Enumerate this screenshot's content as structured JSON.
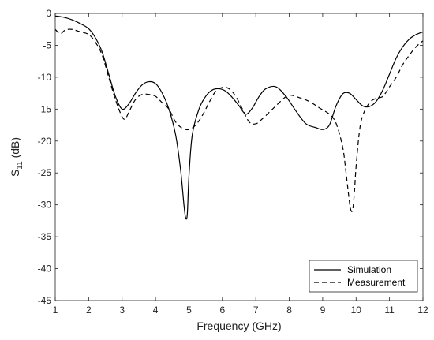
{
  "chart_data": {
    "type": "line",
    "title": "",
    "xlabel": "Frequency (GHz)",
    "ylabel": "S",
    "ylabel_sub": "11",
    "ylabel_suffix": " (dB)",
    "xlim": [
      1,
      12
    ],
    "ylim": [
      -45,
      0
    ],
    "xticks": [
      1,
      2,
      3,
      4,
      5,
      6,
      7,
      8,
      9,
      10,
      11,
      12
    ],
    "yticks": [
      0,
      -5,
      -10,
      -15,
      -20,
      -25,
      -30,
      -35,
      -40,
      -45
    ],
    "grid": false,
    "legend_position": "bottom-right",
    "series": [
      {
        "name": "Simulation",
        "style": "solid",
        "color": "#000000",
        "x": [
          1.0,
          1.25,
          1.5,
          1.75,
          2.0,
          2.2,
          2.4,
          2.6,
          2.8,
          3.0,
          3.2,
          3.4,
          3.6,
          3.8,
          4.0,
          4.2,
          4.4,
          4.6,
          4.75,
          4.85,
          4.9,
          4.95,
          5.0,
          5.1,
          5.3,
          5.5,
          5.7,
          5.9,
          6.1,
          6.3,
          6.5,
          6.7,
          6.9,
          7.1,
          7.3,
          7.6,
          7.9,
          8.2,
          8.5,
          8.8,
          9.0,
          9.2,
          9.4,
          9.6,
          9.8,
          10.0,
          10.2,
          10.4,
          10.6,
          10.8,
          11.0,
          11.2,
          11.4,
          11.6,
          11.8,
          12.0
        ],
        "y": [
          -0.4,
          -0.6,
          -1.0,
          -1.6,
          -2.4,
          -3.8,
          -6.0,
          -9.5,
          -13.0,
          -15.0,
          -14.2,
          -12.5,
          -11.2,
          -10.7,
          -11.0,
          -12.5,
          -15.0,
          -19.0,
          -24.5,
          -30.0,
          -32.0,
          -31.5,
          -25.5,
          -19.0,
          -15.0,
          -13.0,
          -12.0,
          -11.8,
          -12.2,
          -13.2,
          -14.5,
          -15.8,
          -14.8,
          -13.0,
          -11.8,
          -11.5,
          -13.0,
          -15.3,
          -17.3,
          -17.9,
          -18.2,
          -17.5,
          -14.5,
          -12.6,
          -12.5,
          -13.5,
          -14.5,
          -14.6,
          -13.8,
          -12.0,
          -9.5,
          -7.0,
          -5.2,
          -4.0,
          -3.3,
          -2.9
        ]
      },
      {
        "name": "Measurement",
        "style": "dashed",
        "color": "#000000",
        "x": [
          1.0,
          1.15,
          1.3,
          1.5,
          1.75,
          2.0,
          2.2,
          2.4,
          2.6,
          2.8,
          3.0,
          3.1,
          3.2,
          3.4,
          3.6,
          3.8,
          4.0,
          4.2,
          4.4,
          4.6,
          4.8,
          5.0,
          5.2,
          5.4,
          5.6,
          5.8,
          6.0,
          6.2,
          6.4,
          6.6,
          6.8,
          7.0,
          7.2,
          7.5,
          7.8,
          8.0,
          8.3,
          8.6,
          8.9,
          9.2,
          9.4,
          9.6,
          9.7,
          9.8,
          9.85,
          9.9,
          9.95,
          10.0,
          10.1,
          10.2,
          10.4,
          10.6,
          10.8,
          11.0,
          11.2,
          11.4,
          11.6,
          11.8,
          12.0
        ],
        "y": [
          -2.5,
          -3.2,
          -2.6,
          -2.5,
          -2.9,
          -3.3,
          -4.5,
          -6.5,
          -10.0,
          -13.5,
          -16.2,
          -16.5,
          -15.5,
          -13.5,
          -12.7,
          -12.7,
          -13.0,
          -14.0,
          -15.0,
          -17.0,
          -18.0,
          -18.2,
          -17.5,
          -16.0,
          -14.0,
          -12.2,
          -11.6,
          -11.8,
          -13.0,
          -15.0,
          -17.0,
          -17.3,
          -16.5,
          -15.0,
          -13.5,
          -12.8,
          -13.2,
          -13.8,
          -14.8,
          -15.8,
          -17.2,
          -21.0,
          -25.0,
          -29.5,
          -30.9,
          -30.7,
          -28.0,
          -24.0,
          -18.5,
          -16.0,
          -14.0,
          -13.3,
          -13.0,
          -11.5,
          -10.0,
          -8.0,
          -6.5,
          -5.2,
          -4.3
        ]
      }
    ]
  }
}
